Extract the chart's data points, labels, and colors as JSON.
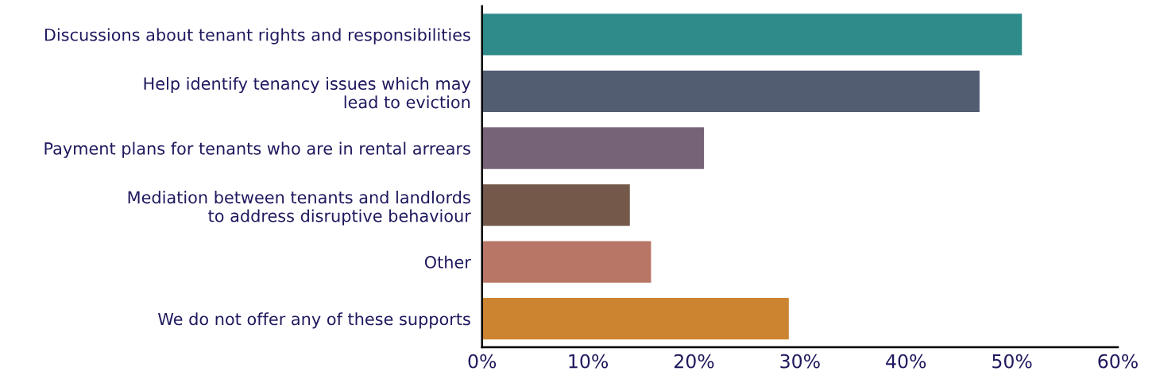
{
  "chart_data": {
    "type": "bar",
    "orientation": "horizontal",
    "categories": [
      "Discussions about tenant rights and responsibilities",
      "Help identify tenancy issues which may\nlead to eviction",
      "Payment plans for tenants who are in rental arrears",
      "Mediation between tenants and landlords\nto address disruptive behaviour",
      "Other",
      "We do not offer any of these supports"
    ],
    "values": [
      51,
      47,
      21,
      14,
      16,
      29
    ],
    "colors": [
      "#2e8b8a",
      "#535d72",
      "#776378",
      "#74594b",
      "#b87666",
      "#cd8430"
    ],
    "xlim": [
      0,
      60
    ],
    "xticks": [
      {
        "value": 0,
        "label": "0%"
      },
      {
        "value": 10,
        "label": "10%"
      },
      {
        "value": 20,
        "label": "20%"
      },
      {
        "value": 30,
        "label": "30%"
      },
      {
        "value": 40,
        "label": "40%"
      },
      {
        "value": 50,
        "label": "50%"
      },
      {
        "value": 60,
        "label": "60%"
      }
    ],
    "grid": false,
    "legend": false
  }
}
